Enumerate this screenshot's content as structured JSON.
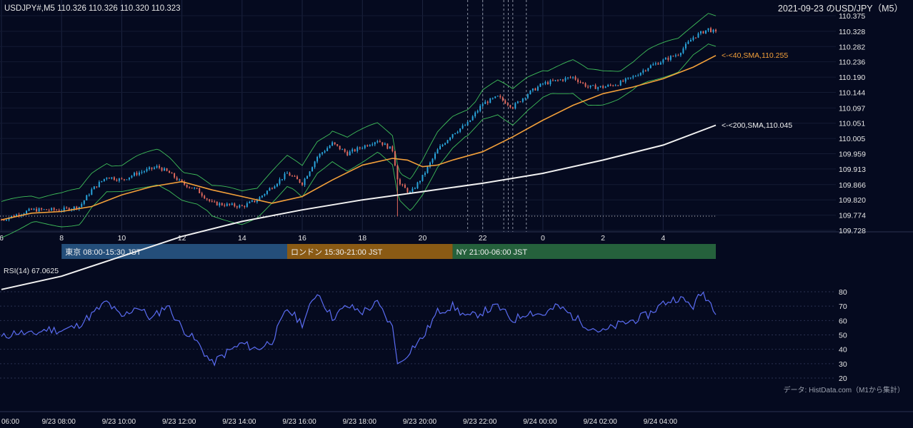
{
  "header": {
    "symbol_info": "USDJPY#,M5 110.326 110.326 110.320 110.323",
    "right_title": "2021-09-23 のUSD/JPY（M5）"
  },
  "colors": {
    "background": "#050a1f",
    "candle_up": "#2aa8e0",
    "candle_down": "#e36a5e",
    "sma40": "#f3a03a",
    "sma200": "#f2f2f2",
    "bollinger": "#3fbf5a",
    "rsi": "#5a6cf2",
    "session_tokyo": "#244e7a",
    "session_london": "#8a5a14",
    "session_ny": "#25613c"
  },
  "annotations": {
    "sma40_label": "<-<40,SMA,110.255",
    "sma200_label": "<-<200,SMA,110.045",
    "rsi_label": "RSI(14) 67.0625",
    "source": "データ: HistData.com（M1から集計）"
  },
  "sessions": [
    {
      "label": "東京 08:00-15:30 JST",
      "start_hour": 8.0,
      "end_hour": 15.5
    },
    {
      "label": "ロンドン 15:30-21:00 JST",
      "start_hour": 15.5,
      "end_hour": 21.0
    },
    {
      "label": "NY 21:00-06:00 JST",
      "start_hour": 21.0,
      "end_hour": 30.0
    }
  ],
  "chart_data": {
    "type": "candlestick",
    "timeframe": "M5",
    "price_axis": {
      "ylim": [
        109.728,
        110.375
      ],
      "ticks": [
        "110.375",
        "110.328",
        "110.282",
        "110.236",
        "110.190",
        "110.144",
        "110.097",
        "110.051",
        "110.005",
        "109.959",
        "109.913",
        "109.866",
        "109.820",
        "109.774",
        "109.728"
      ]
    },
    "hour_axis": {
      "ticks": [
        {
          "label": "6",
          "hour": 6
        },
        {
          "label": "8",
          "hour": 8
        },
        {
          "label": "10",
          "hour": 10
        },
        {
          "label": "12",
          "hour": 12
        },
        {
          "label": "14",
          "hour": 14
        },
        {
          "label": "16",
          "hour": 16
        },
        {
          "label": "18",
          "hour": 18
        },
        {
          "label": "20",
          "hour": 20
        },
        {
          "label": "22",
          "hour": 22
        },
        {
          "label": "0",
          "hour": 24
        },
        {
          "label": "2",
          "hour": 26
        },
        {
          "label": "4",
          "hour": 28
        }
      ]
    },
    "date_axis": {
      "ticks": [
        {
          "label": "06:00",
          "hour": 6
        },
        {
          "label": "9/23 08:00",
          "hour": 8
        },
        {
          "label": "9/23 10:00",
          "hour": 10
        },
        {
          "label": "9/23 12:00",
          "hour": 12
        },
        {
          "label": "9/23 14:00",
          "hour": 14
        },
        {
          "label": "9/23 16:00",
          "hour": 16
        },
        {
          "label": "9/23 18:00",
          "hour": 18
        },
        {
          "label": "9/23 20:00",
          "hour": 20
        },
        {
          "label": "9/23 22:00",
          "hour": 22
        },
        {
          "label": "9/24 00:00",
          "hour": 24
        },
        {
          "label": "9/24 02:00",
          "hour": 26
        },
        {
          "label": "9/24 04:00",
          "hour": 28
        }
      ]
    },
    "hour_range": [
      6.0,
      29.75
    ],
    "reference_line": 109.771,
    "event_lines_hours": [
      21.5,
      22.0,
      22.7,
      22.85,
      23.0,
      23.45
    ],
    "price_path": [
      [
        6.0,
        109.76
      ],
      [
        7.0,
        109.79
      ],
      [
        8.0,
        109.79
      ],
      [
        8.6,
        109.8
      ],
      [
        9.0,
        109.85
      ],
      [
        9.5,
        109.89
      ],
      [
        10.0,
        109.88
      ],
      [
        10.5,
        109.9
      ],
      [
        11.2,
        109.92
      ],
      [
        11.6,
        109.9
      ],
      [
        12.0,
        109.87
      ],
      [
        12.5,
        109.85
      ],
      [
        13.0,
        109.81
      ],
      [
        14.0,
        109.8
      ],
      [
        14.5,
        109.82
      ],
      [
        15.0,
        109.86
      ],
      [
        15.5,
        109.9
      ],
      [
        16.0,
        109.87
      ],
      [
        16.5,
        109.95
      ],
      [
        17.0,
        109.99
      ],
      [
        17.5,
        109.96
      ],
      [
        18.0,
        109.98
      ],
      [
        18.5,
        110.0
      ],
      [
        19.0,
        109.97
      ],
      [
        19.2,
        109.87
      ],
      [
        19.6,
        109.84
      ],
      [
        20.0,
        109.89
      ],
      [
        20.5,
        109.97
      ],
      [
        21.0,
        110.02
      ],
      [
        21.5,
        110.05
      ],
      [
        22.0,
        110.11
      ],
      [
        22.5,
        110.13
      ],
      [
        23.0,
        110.1
      ],
      [
        23.5,
        110.14
      ],
      [
        24.0,
        110.17
      ],
      [
        24.5,
        110.18
      ],
      [
        25.0,
        110.19
      ],
      [
        25.5,
        110.16
      ],
      [
        26.0,
        110.16
      ],
      [
        26.5,
        110.17
      ],
      [
        27.0,
        110.19
      ],
      [
        27.5,
        110.22
      ],
      [
        28.0,
        110.24
      ],
      [
        28.5,
        110.26
      ],
      [
        29.0,
        110.31
      ],
      [
        29.5,
        110.335
      ],
      [
        29.75,
        110.323
      ]
    ],
    "sma40_path": [
      [
        6.0,
        109.76
      ],
      [
        7.0,
        109.78
      ],
      [
        8.0,
        109.785
      ],
      [
        9.0,
        109.8
      ],
      [
        10.0,
        109.835
      ],
      [
        11.0,
        109.86
      ],
      [
        12.0,
        109.875
      ],
      [
        13.0,
        109.85
      ],
      [
        14.0,
        109.83
      ],
      [
        15.0,
        109.81
      ],
      [
        16.0,
        109.83
      ],
      [
        17.0,
        109.88
      ],
      [
        18.0,
        109.925
      ],
      [
        19.0,
        109.945
      ],
      [
        19.5,
        109.94
      ],
      [
        20.0,
        109.92
      ],
      [
        20.5,
        109.925
      ],
      [
        21.0,
        109.94
      ],
      [
        22.0,
        109.965
      ],
      [
        23.0,
        110.01
      ],
      [
        24.0,
        110.06
      ],
      [
        25.0,
        110.105
      ],
      [
        26.0,
        110.14
      ],
      [
        27.0,
        110.16
      ],
      [
        28.0,
        110.185
      ],
      [
        29.0,
        110.22
      ],
      [
        29.75,
        110.255
      ]
    ],
    "sma200_path": [
      [
        6.0,
        109.55
      ],
      [
        8.0,
        109.59
      ],
      [
        10.0,
        109.65
      ],
      [
        12.0,
        109.71
      ],
      [
        14.0,
        109.755
      ],
      [
        16.0,
        109.79
      ],
      [
        18.0,
        109.82
      ],
      [
        20.0,
        109.845
      ],
      [
        22.0,
        109.87
      ],
      [
        24.0,
        109.9
      ],
      [
        26.0,
        109.94
      ],
      [
        28.0,
        109.985
      ],
      [
        29.75,
        110.045
      ]
    ],
    "rsi": {
      "label": "RSI(14) 67.0625",
      "ylim": [
        15,
        85
      ],
      "ticks": [
        80,
        70,
        60,
        50,
        40,
        30,
        20
      ],
      "current": 67.0625,
      "path": [
        [
          6.0,
          48
        ],
        [
          6.5,
          52
        ],
        [
          7.0,
          50
        ],
        [
          7.5,
          54
        ],
        [
          8.0,
          53
        ],
        [
          8.5,
          56
        ],
        [
          9.0,
          64
        ],
        [
          9.5,
          73
        ],
        [
          10.0,
          62
        ],
        [
          10.5,
          70
        ],
        [
          11.0,
          61
        ],
        [
          11.5,
          71
        ],
        [
          12.0,
          55
        ],
        [
          12.5,
          45
        ],
        [
          13.0,
          30
        ],
        [
          13.5,
          38
        ],
        [
          14.0,
          44
        ],
        [
          14.5,
          40
        ],
        [
          15.0,
          46
        ],
        [
          15.5,
          68
        ],
        [
          16.0,
          58
        ],
        [
          16.5,
          80
        ],
        [
          17.0,
          62
        ],
        [
          17.5,
          70
        ],
        [
          18.0,
          66
        ],
        [
          18.5,
          72
        ],
        [
          19.0,
          55
        ],
        [
          19.2,
          28
        ],
        [
          19.6,
          40
        ],
        [
          20.0,
          48
        ],
        [
          20.5,
          66
        ],
        [
          21.0,
          70
        ],
        [
          21.5,
          62
        ],
        [
          22.0,
          66
        ],
        [
          22.5,
          70
        ],
        [
          23.0,
          60
        ],
        [
          23.5,
          66
        ],
        [
          24.0,
          64
        ],
        [
          24.5,
          70
        ],
        [
          25.0,
          63
        ],
        [
          25.5,
          56
        ],
        [
          26.0,
          52
        ],
        [
          26.5,
          57
        ],
        [
          27.0,
          60
        ],
        [
          27.5,
          64
        ],
        [
          28.0,
          72
        ],
        [
          28.5,
          76
        ],
        [
          29.0,
          70
        ],
        [
          29.3,
          80
        ],
        [
          29.75,
          67
        ]
      ]
    }
  }
}
